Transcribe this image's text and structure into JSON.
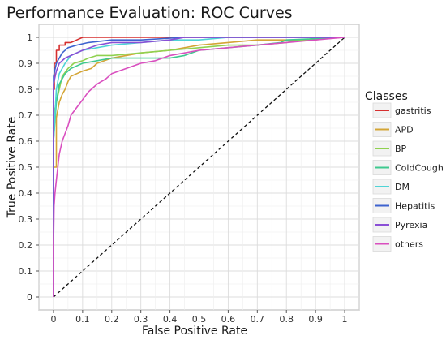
{
  "chart_data": {
    "type": "line",
    "title": "Performance Evaluation: ROC Curves",
    "xlabel": "False Positive Rate",
    "ylabel": "True Positive Rate",
    "xlim": [
      -0.05,
      1.05
    ],
    "ylim": [
      -0.05,
      1.05
    ],
    "xticks": [
      "0",
      "0.1",
      "0.2",
      "0.3",
      "0.4",
      "0.5",
      "0.6",
      "0.7",
      "0.8",
      "0.9",
      "1"
    ],
    "yticks": [
      "0",
      "0.1",
      "0.2",
      "0.3",
      "0.4",
      "0.5",
      "0.6",
      "0.7",
      "0.8",
      "0.9",
      "1"
    ],
    "grid": true,
    "legend_position": "right",
    "legend_title": "Classes",
    "series": [
      {
        "name": "gastritis",
        "color": "#d62f2f",
        "x": [
          0,
          0,
          0.003,
          0.003,
          0.01,
          0.01,
          0.02,
          0.02,
          0.04,
          0.04,
          0.06,
          0.08,
          0.1,
          0.25,
          0.45,
          0.6,
          1.0
        ],
        "y": [
          0,
          0.8,
          0.8,
          0.9,
          0.9,
          0.95,
          0.95,
          0.97,
          0.97,
          0.98,
          0.98,
          0.99,
          1.0,
          1.0,
          1.0,
          1.0,
          1.0
        ]
      },
      {
        "name": "APD",
        "color": "#d4a535",
        "x": [
          0,
          0,
          0.01,
          0.01,
          0.02,
          0.03,
          0.04,
          0.05,
          0.06,
          0.08,
          0.1,
          0.13,
          0.15,
          0.2,
          0.25,
          0.3,
          0.4,
          0.5,
          0.6,
          0.7,
          0.8,
          0.9,
          0.95
        ],
        "y": [
          0,
          0.5,
          0.5,
          0.69,
          0.75,
          0.78,
          0.8,
          0.83,
          0.85,
          0.86,
          0.87,
          0.88,
          0.9,
          0.92,
          0.93,
          0.94,
          0.95,
          0.97,
          0.98,
          0.99,
          0.99,
          0.99,
          1.0
        ]
      },
      {
        "name": "BP",
        "color": "#8fd14f",
        "x": [
          0,
          0,
          0.01,
          0.02,
          0.03,
          0.05,
          0.07,
          0.1,
          0.12,
          0.15,
          0.2,
          0.3,
          0.4,
          0.5,
          0.6,
          0.7,
          0.8,
          0.85,
          1.0
        ],
        "y": [
          0,
          0.7,
          0.75,
          0.8,
          0.85,
          0.88,
          0.9,
          0.91,
          0.92,
          0.93,
          0.93,
          0.94,
          0.95,
          0.96,
          0.97,
          0.97,
          0.98,
          0.99,
          1.0
        ]
      },
      {
        "name": "ColdCough",
        "color": "#3fc98f",
        "x": [
          0,
          0,
          0.01,
          0.02,
          0.04,
          0.06,
          0.08,
          0.1,
          0.15,
          0.2,
          0.3,
          0.4,
          0.45,
          0.5,
          0.6,
          0.7,
          0.78,
          0.8,
          1.0
        ],
        "y": [
          0,
          0.6,
          0.75,
          0.82,
          0.86,
          0.88,
          0.89,
          0.9,
          0.91,
          0.92,
          0.92,
          0.92,
          0.93,
          0.95,
          0.96,
          0.97,
          0.98,
          0.99,
          1.0
        ]
      },
      {
        "name": "DM",
        "color": "#4fd4d6",
        "x": [
          0,
          0,
          0.005,
          0.01,
          0.02,
          0.04,
          0.06,
          0.1,
          0.15,
          0.2,
          0.3,
          0.4,
          0.5,
          0.6,
          1.0
        ],
        "y": [
          0,
          0.6,
          0.7,
          0.8,
          0.86,
          0.9,
          0.93,
          0.95,
          0.96,
          0.97,
          0.98,
          0.99,
          0.99,
          1.0,
          1.0
        ]
      },
      {
        "name": "Hepatitis",
        "color": "#3d63cf",
        "x": [
          0,
          0,
          0.01,
          0.02,
          0.03,
          0.05,
          0.08,
          0.12,
          0.2,
          0.3,
          0.45,
          0.6,
          1.0
        ],
        "y": [
          0,
          0.85,
          0.9,
          0.92,
          0.94,
          0.96,
          0.97,
          0.98,
          0.99,
          0.99,
          1.0,
          1.0,
          1.0
        ]
      },
      {
        "name": "Pyrexia",
        "color": "#8a4fd6",
        "x": [
          0,
          0,
          0.01,
          0.02,
          0.04,
          0.06,
          0.08,
          0.1,
          0.15,
          0.2,
          0.3,
          0.4,
          0.45,
          0.5,
          0.7,
          1.0
        ],
        "y": [
          0,
          0.82,
          0.87,
          0.9,
          0.92,
          0.93,
          0.94,
          0.95,
          0.97,
          0.98,
          0.98,
          0.99,
          1.0,
          1.0,
          1.0,
          1.0
        ]
      },
      {
        "name": "others",
        "color": "#d94fbf",
        "x": [
          0,
          0,
          0.002,
          0.005,
          0.01,
          0.015,
          0.02,
          0.03,
          0.04,
          0.05,
          0.06,
          0.08,
          0.1,
          0.12,
          0.15,
          0.18,
          0.2,
          0.25,
          0.3,
          0.35,
          0.4,
          0.5,
          0.6,
          0.7,
          0.8,
          0.9,
          1.0
        ],
        "y": [
          0,
          0.2,
          0.35,
          0.4,
          0.45,
          0.5,
          0.55,
          0.6,
          0.63,
          0.66,
          0.7,
          0.73,
          0.76,
          0.79,
          0.82,
          0.84,
          0.86,
          0.88,
          0.9,
          0.91,
          0.93,
          0.95,
          0.96,
          0.97,
          0.98,
          0.99,
          1.0
        ]
      }
    ]
  }
}
